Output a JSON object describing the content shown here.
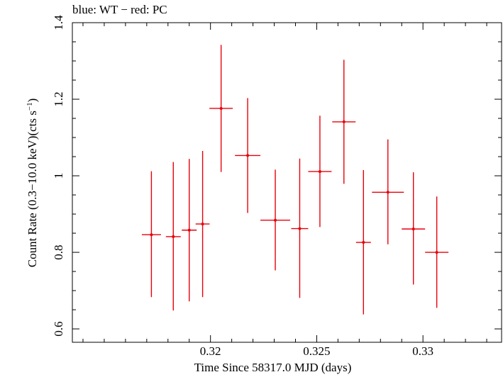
{
  "chart_data": {
    "type": "scatter",
    "title": "blue: WT − red: PC",
    "xlabel": "Time Since 58317.0 MJD (days)",
    "ylabel_main": "Count Rate (0.3−10.0 keV)(cts s",
    "ylabel_sup": "−1",
    "ylabel_end": ")",
    "xlim": [
      0.3135,
      0.3337
    ],
    "ylim": [
      0.565,
      1.4
    ],
    "xticks": [
      0.32,
      0.325,
      0.33
    ],
    "xtick_labels": [
      "0.32",
      "0.325",
      "0.33"
    ],
    "yticks": [
      0.6,
      0.8,
      1.0,
      1.2,
      1.4
    ],
    "ytick_labels": [
      "0.6",
      "0.8",
      "1",
      "1.2",
      "1.4"
    ],
    "grid": false,
    "series": [
      {
        "color": "#e8000b",
        "points": [
          {
            "x": 0.31722,
            "y": 0.846,
            "xerr": 0.00045,
            "ylo": 0.683,
            "yhi": 1.012
          },
          {
            "x": 0.31825,
            "y": 0.841,
            "xerr": 0.00035,
            "ylo": 0.648,
            "yhi": 1.036
          },
          {
            "x": 0.319,
            "y": 0.858,
            "xerr": 0.00035,
            "ylo": 0.672,
            "yhi": 1.044
          },
          {
            "x": 0.31963,
            "y": 0.874,
            "xerr": 0.00033,
            "ylo": 0.683,
            "yhi": 1.065
          },
          {
            "x": 0.3205,
            "y": 1.176,
            "xerr": 0.00055,
            "ylo": 1.01,
            "yhi": 1.342
          },
          {
            "x": 0.32175,
            "y": 1.053,
            "xerr": 0.0006,
            "ylo": 0.903,
            "yhi": 1.203
          },
          {
            "x": 0.32305,
            "y": 0.884,
            "xerr": 0.0007,
            "ylo": 0.753,
            "yhi": 1.016
          },
          {
            "x": 0.3242,
            "y": 0.862,
            "xerr": 0.0004,
            "ylo": 0.681,
            "yhi": 1.045
          },
          {
            "x": 0.32515,
            "y": 1.011,
            "xerr": 0.00055,
            "ylo": 0.866,
            "yhi": 1.157
          },
          {
            "x": 0.32628,
            "y": 1.141,
            "xerr": 0.00055,
            "ylo": 0.979,
            "yhi": 1.303
          },
          {
            "x": 0.3272,
            "y": 0.826,
            "xerr": 0.00035,
            "ylo": 0.638,
            "yhi": 1.015
          },
          {
            "x": 0.32835,
            "y": 0.957,
            "xerr": 0.00075,
            "ylo": 0.821,
            "yhi": 1.095
          },
          {
            "x": 0.32955,
            "y": 0.861,
            "xerr": 0.00055,
            "ylo": 0.716,
            "yhi": 1.009
          },
          {
            "x": 0.33065,
            "y": 0.8,
            "xerr": 0.00055,
            "ylo": 0.655,
            "yhi": 0.946
          }
        ]
      }
    ]
  }
}
